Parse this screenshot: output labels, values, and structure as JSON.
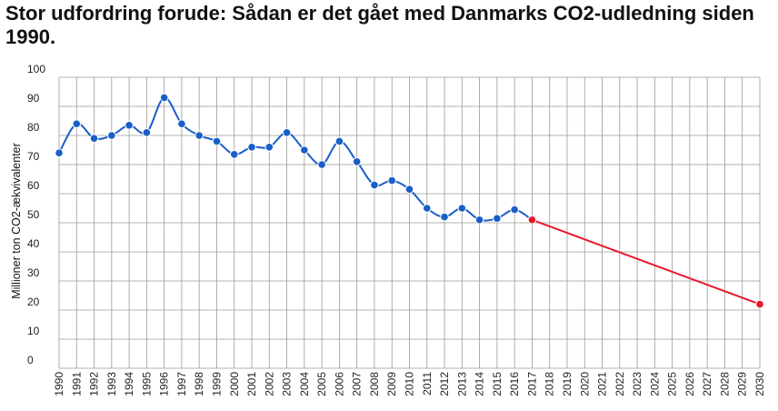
{
  "chart_data": {
    "type": "line",
    "title": "Stor udfordring forude: Sådan er det gået med Danmarks CO2-udledning siden 1990.",
    "xlabel": "",
    "ylabel": "Millioner ton CO2-ækvivalenter",
    "ylim": [
      0,
      100
    ],
    "xlim": [
      1990,
      2030
    ],
    "yticks": [
      0,
      10,
      20,
      30,
      40,
      50,
      60,
      70,
      80,
      90,
      100
    ],
    "grid": true,
    "series": [
      {
        "color": "#1a5fc7",
        "x": [
          1990,
          1991,
          1992,
          1993,
          1994,
          1995,
          1996,
          1997,
          1998,
          1999,
          2000,
          2001,
          2002,
          2003,
          2004,
          2005,
          2006,
          2007,
          2008,
          2009,
          2010,
          2011,
          2012,
          2013,
          2014,
          2015,
          2016,
          2017
        ],
        "values": [
          74,
          84,
          79,
          80,
          83.5,
          81,
          93,
          84,
          80,
          78,
          73.5,
          76,
          76,
          81,
          75,
          70,
          78,
          71,
          63,
          64.5,
          61.5,
          55,
          52,
          55,
          51,
          51.5,
          54.5,
          51
        ]
      },
      {
        "color": "#e8192c",
        "x": [
          2017,
          2030
        ],
        "values": [
          51,
          22
        ]
      }
    ]
  }
}
